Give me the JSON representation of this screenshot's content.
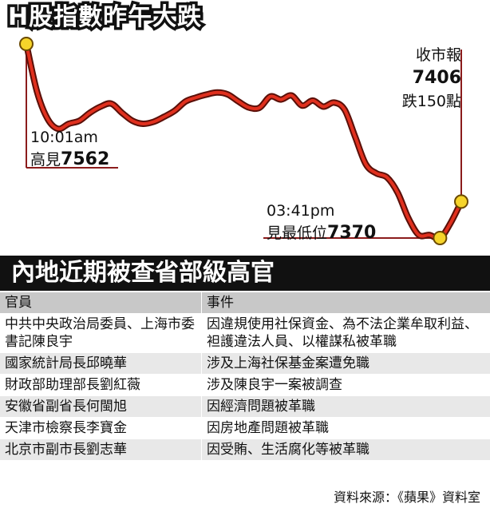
{
  "title": "H股指數昨午大跌",
  "chart_data": {
    "type": "line",
    "title": "H股指數昨午大跌",
    "series": [
      {
        "values": [
          7562,
          7515,
          7488,
          7478,
          7483,
          7486,
          7494,
          7500,
          7503,
          7494,
          7486,
          7483,
          7485,
          7490,
          7496,
          7505,
          7509,
          7512,
          7514,
          7512,
          7505,
          7499,
          7499,
          7510,
          7507,
          7511,
          7501,
          7506,
          7500,
          7504,
          7497,
          7470,
          7443,
          7434,
          7430,
          7415,
          7390,
          7373,
          7373,
          7370,
          7385,
          7406
        ]
      }
    ],
    "annotations": {
      "high": {
        "time": "10:01am",
        "label": "高見",
        "value": "7562"
      },
      "low": {
        "time": "03:41pm",
        "label": "見最低位",
        "value": "7370"
      },
      "close": {
        "label": "收市報",
        "value": "7406",
        "change": "跌150點"
      }
    },
    "grid": false,
    "colors": {
      "line": "#e0301e",
      "shadow": "#5a0f08",
      "marker": "#f6d42a",
      "marker_edge": "#6b4a00",
      "guide": "#8b1c1c"
    }
  },
  "section_title": "內地近期被查省部級高官",
  "table": {
    "headers": [
      "官員",
      "事件"
    ],
    "rows": [
      {
        "official": "中共中央政治局委員、上海市委書記陳良宇",
        "event": "因違規使用社保資金、為不法企業牟取利益、袒護違法人員、以權謀私被革職"
      },
      {
        "official": "國家統計局長邱曉華",
        "event": "涉及上海社保基金案遭免職"
      },
      {
        "official": "財政部助理部長劉紅薇",
        "event": "涉及陳良宇一案被調查"
      },
      {
        "official": "安徽省副省長何閩旭",
        "event": "因經濟問題被革職"
      },
      {
        "official": "天津市檢察長李寶金",
        "event": "因房地產問題被革職"
      },
      {
        "official": "北京市副市長劉志華",
        "event": "因受賄、生活腐化等被革職"
      }
    ]
  },
  "source": "資料來源：《蘋果》資料室"
}
